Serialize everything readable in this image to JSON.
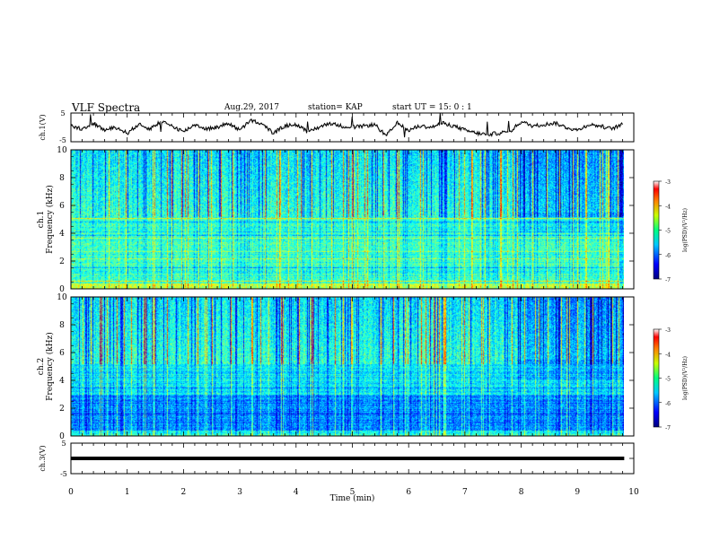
{
  "header": {
    "title": "VLF Spectra",
    "date": "Aug.29, 2017",
    "station": "station= KAP",
    "start_ut": "start  UT =  15: 0  : 1"
  },
  "chart_data": [
    {
      "type": "line",
      "ylabel": "ch.1(V)",
      "ylim": [
        -5,
        5
      ],
      "ytick_labels": [
        "5",
        "-5"
      ],
      "x": [
        0.0,
        0.2,
        0.4,
        0.6,
        0.8,
        1.0,
        1.2,
        1.4,
        1.6,
        1.8,
        2.0,
        2.2,
        2.4,
        2.6,
        2.8,
        3.0,
        3.2,
        3.4,
        3.6,
        3.8,
        4.0,
        4.2,
        4.4,
        4.6,
        4.8,
        5.0,
        5.2,
        5.4,
        5.6,
        5.8,
        6.0,
        6.2,
        6.4,
        6.6,
        6.8,
        7.0,
        7.2,
        7.4,
        7.6,
        7.8,
        8.0,
        8.2,
        8.4,
        8.6,
        8.8,
        9.0,
        9.2,
        9.4,
        9.6,
        9.8
      ],
      "y": [
        0.5,
        -0.5,
        1.5,
        -1.0,
        0.0,
        -2.0,
        1.0,
        -0.5,
        2.0,
        0.5,
        -1.5,
        1.0,
        -0.5,
        0.0,
        1.5,
        -1.0,
        2.5,
        1.0,
        -2.0,
        0.5,
        1.0,
        -1.5,
        0.0,
        1.5,
        0.5,
        0.0,
        0.5,
        1.0,
        -3.0,
        1.5,
        -1.0,
        0.5,
        0.0,
        1.5,
        0.5,
        -1.0,
        -2.0,
        -2.5,
        -2.0,
        -1.5,
        2.0,
        0.5,
        1.0,
        1.5,
        0.0,
        -1.0,
        1.0,
        0.5,
        -0.5,
        1.0
      ]
    },
    {
      "type": "heatmap",
      "ylabel": "ch.1\nFrequency (kHz)",
      "xlim": [
        0,
        10
      ],
      "ylim": [
        0,
        10
      ],
      "yticks": [
        0,
        2,
        4,
        6,
        8,
        10
      ],
      "data_end_min": 9.83,
      "colorbar": {
        "label": "log(PSD)(V²/Hz)",
        "range": [
          -7,
          -3
        ],
        "ticks": [
          -3,
          -4,
          -5,
          -6,
          -7
        ]
      },
      "noise_band_khz": [
        0,
        5.2
      ],
      "change_time_min": 7.92
    },
    {
      "type": "heatmap",
      "ylabel": "ch.2\nFrequency (kHz)",
      "xlim": [
        0,
        10
      ],
      "ylim": [
        0,
        10
      ],
      "yticks": [
        0,
        2,
        4,
        6,
        8,
        10
      ],
      "data_end_min": 9.83,
      "colorbar": {
        "label": "log(PSD)(V²/Hz)",
        "range": [
          -7,
          -3
        ],
        "ticks": [
          -3,
          -4,
          -5,
          -6,
          -7
        ]
      },
      "noise_band_khz": [
        0,
        5.2
      ],
      "change_time_min": 7.92
    },
    {
      "type": "line",
      "ylabel": "ch.3(V)",
      "ylim": [
        -5,
        5
      ],
      "yticks": [
        5,
        0,
        -5
      ],
      "x": [
        0,
        9.83
      ],
      "y": [
        0,
        0
      ],
      "xlabel": "Time (min)",
      "xticks": [
        0,
        1,
        2,
        3,
        4,
        5,
        6,
        7,
        8,
        9,
        10
      ]
    }
  ]
}
